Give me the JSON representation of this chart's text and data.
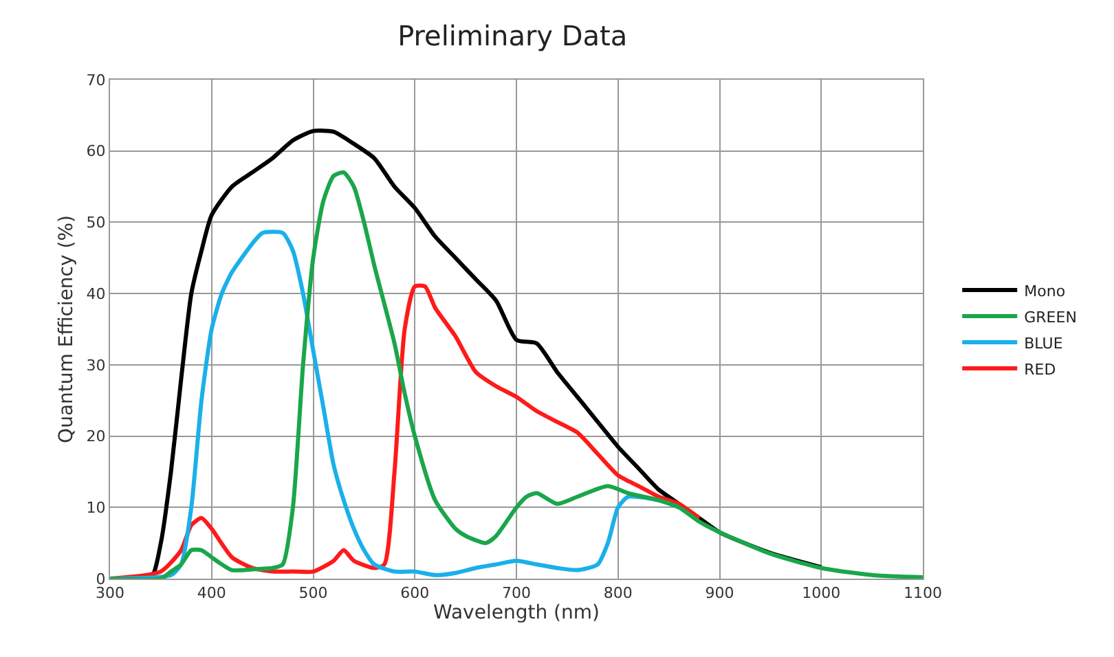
{
  "chart_data": {
    "type": "line",
    "title": "Preliminary Data",
    "xlabel": "Wavelength (nm)",
    "ylabel": "Quantum Efficiency (%)",
    "xlim": [
      300,
      1100
    ],
    "xticks": [
      300,
      400,
      500,
      600,
      700,
      800,
      900,
      1000,
      1100
    ],
    "ylim": [
      0,
      70
    ],
    "yticks": [
      0,
      10,
      20,
      30,
      40,
      50,
      60,
      70
    ],
    "grid": true,
    "legend": "right",
    "marker": "none",
    "line_style": "solid",
    "series": [
      {
        "name": "Mono",
        "color": "#000000",
        "x": [
          300,
          340,
          350,
          360,
          370,
          380,
          390,
          400,
          420,
          440,
          460,
          480,
          500,
          520,
          540,
          560,
          580,
          600,
          620,
          640,
          660,
          680,
          700,
          720,
          740,
          760,
          780,
          800,
          820,
          840,
          860,
          880,
          900,
          950,
          1000
        ],
        "values": [
          0,
          0,
          5,
          15,
          28,
          40,
          46,
          51,
          55,
          57,
          59,
          61.5,
          62.8,
          62.7,
          61,
          59,
          55,
          52,
          48,
          45,
          42,
          39,
          33.5,
          33,
          29,
          25.5,
          22,
          18.5,
          15.5,
          12.5,
          10.5,
          8.5,
          6.5,
          3.6,
          1.6
        ]
      },
      {
        "name": "RED",
        "color": "#ff1a1a",
        "x": [
          300,
          350,
          370,
          380,
          390,
          400,
          420,
          440,
          460,
          480,
          500,
          520,
          530,
          540,
          560,
          570,
          580,
          590,
          600,
          610,
          620,
          640,
          660,
          680,
          700,
          720,
          740,
          760,
          780,
          800,
          820,
          840,
          860,
          880
        ],
        "values": [
          0,
          1,
          4,
          7.5,
          8.5,
          7,
          3,
          1.5,
          1,
          1,
          1,
          2.5,
          4,
          2.5,
          1.5,
          2,
          15,
          35,
          41,
          41,
          38,
          34,
          29,
          27,
          25.5,
          23.5,
          22,
          20.5,
          17.5,
          14.5,
          13,
          11.5,
          10.5,
          8.5
        ]
      },
      {
        "name": "BLUE",
        "color": "#1ab0ea",
        "x": [
          300,
          360,
          370,
          380,
          390,
          400,
          410,
          420,
          440,
          450,
          470,
          480,
          490,
          500,
          510,
          520,
          530,
          540,
          550,
          560,
          580,
          600,
          620,
          640,
          660,
          680,
          700,
          720,
          740,
          760,
          780,
          790,
          800,
          810,
          840,
          860
        ],
        "values": [
          0,
          0.5,
          2,
          10,
          25,
          35,
          40,
          43,
          47,
          48.5,
          48.5,
          46,
          40,
          32,
          24,
          16,
          11,
          7,
          4,
          2,
          1,
          1,
          0.5,
          0.8,
          1.5,
          2,
          2.5,
          2,
          1.5,
          1.2,
          2,
          5,
          10,
          11.5,
          11,
          10
        ]
      },
      {
        "name": "GREEN",
        "color": "#1aa64a",
        "x": [
          300,
          350,
          360,
          370,
          380,
          390,
          400,
          410,
          420,
          440,
          460,
          470,
          480,
          490,
          500,
          510,
          520,
          530,
          540,
          550,
          560,
          580,
          590,
          600,
          620,
          640,
          650,
          670,
          680,
          700,
          710,
          720,
          740,
          760,
          790,
          810,
          840,
          860,
          880,
          900,
          950,
          1000,
          1050,
          1100
        ],
        "values": [
          0,
          0,
          1,
          2,
          4,
          4,
          3,
          2,
          1.2,
          1.3,
          1.5,
          2,
          10,
          30,
          45,
          53,
          56.5,
          57,
          55,
          50,
          44,
          33,
          26,
          20,
          11,
          7,
          6,
          5,
          6,
          10,
          11.5,
          12,
          10.5,
          11.5,
          13,
          12,
          11,
          10,
          8,
          6.5,
          3.5,
          1.5,
          0.5,
          0.2
        ]
      }
    ]
  }
}
